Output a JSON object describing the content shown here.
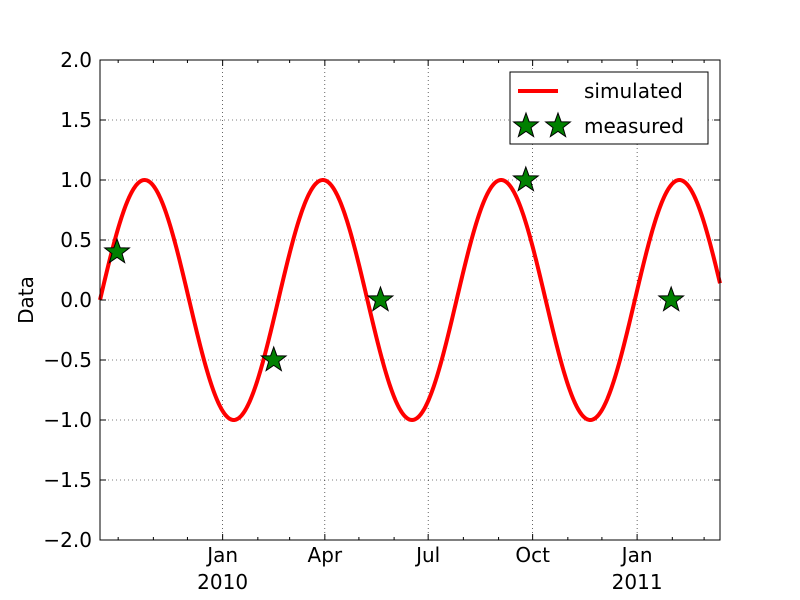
{
  "chart_data": {
    "type": "line",
    "ylabel": "Data",
    "ylim": [
      -2.0,
      2.0
    ],
    "xlim": [
      "2009-09-15",
      "2011-03-15"
    ],
    "yticks": [
      -2.0,
      -1.5,
      -1.0,
      -0.5,
      0.0,
      0.5,
      1.0,
      1.5,
      2.0
    ],
    "ytick_labels": [
      "−2.0",
      "−1.5",
      "−1.0",
      "−0.5",
      "0.0",
      "0.5",
      "1.0",
      "1.5",
      "2.0"
    ],
    "xticks_major": [
      {
        "date": "2010-01-01",
        "label": "Jan",
        "sublabel": "2010"
      },
      {
        "date": "2010-04-01",
        "label": "Apr",
        "sublabel": ""
      },
      {
        "date": "2010-07-01",
        "label": "Jul",
        "sublabel": ""
      },
      {
        "date": "2010-10-01",
        "label": "Oct",
        "sublabel": ""
      },
      {
        "date": "2011-01-01",
        "label": "Jan",
        "sublabel": "2011"
      }
    ],
    "xticks_minor": [
      "2009-10-01",
      "2009-11-01",
      "2009-12-01",
      "2010-02-01",
      "2010-03-01",
      "2010-05-01",
      "2010-06-01",
      "2010-08-01",
      "2010-09-01",
      "2010-11-01",
      "2010-12-01",
      "2011-02-01",
      "2011-03-01"
    ],
    "grid": true,
    "legend_position": "top-right",
    "series": [
      {
        "name": "simulated",
        "kind": "line",
        "color": "#ff0000",
        "function": "sine",
        "start": "2009-09-15",
        "period_days": 157,
        "amplitude": 1.0
      },
      {
        "name": "measured",
        "kind": "scatter",
        "marker": "star",
        "color": "#008000",
        "points": [
          {
            "x": "2009-09-30",
            "y": 0.4
          },
          {
            "x": "2010-02-15",
            "y": -0.5
          },
          {
            "x": "2010-05-20",
            "y": 0.0
          },
          {
            "x": "2010-09-25",
            "y": 1.0
          },
          {
            "x": "2011-01-31",
            "y": 0.0
          }
        ]
      }
    ]
  }
}
